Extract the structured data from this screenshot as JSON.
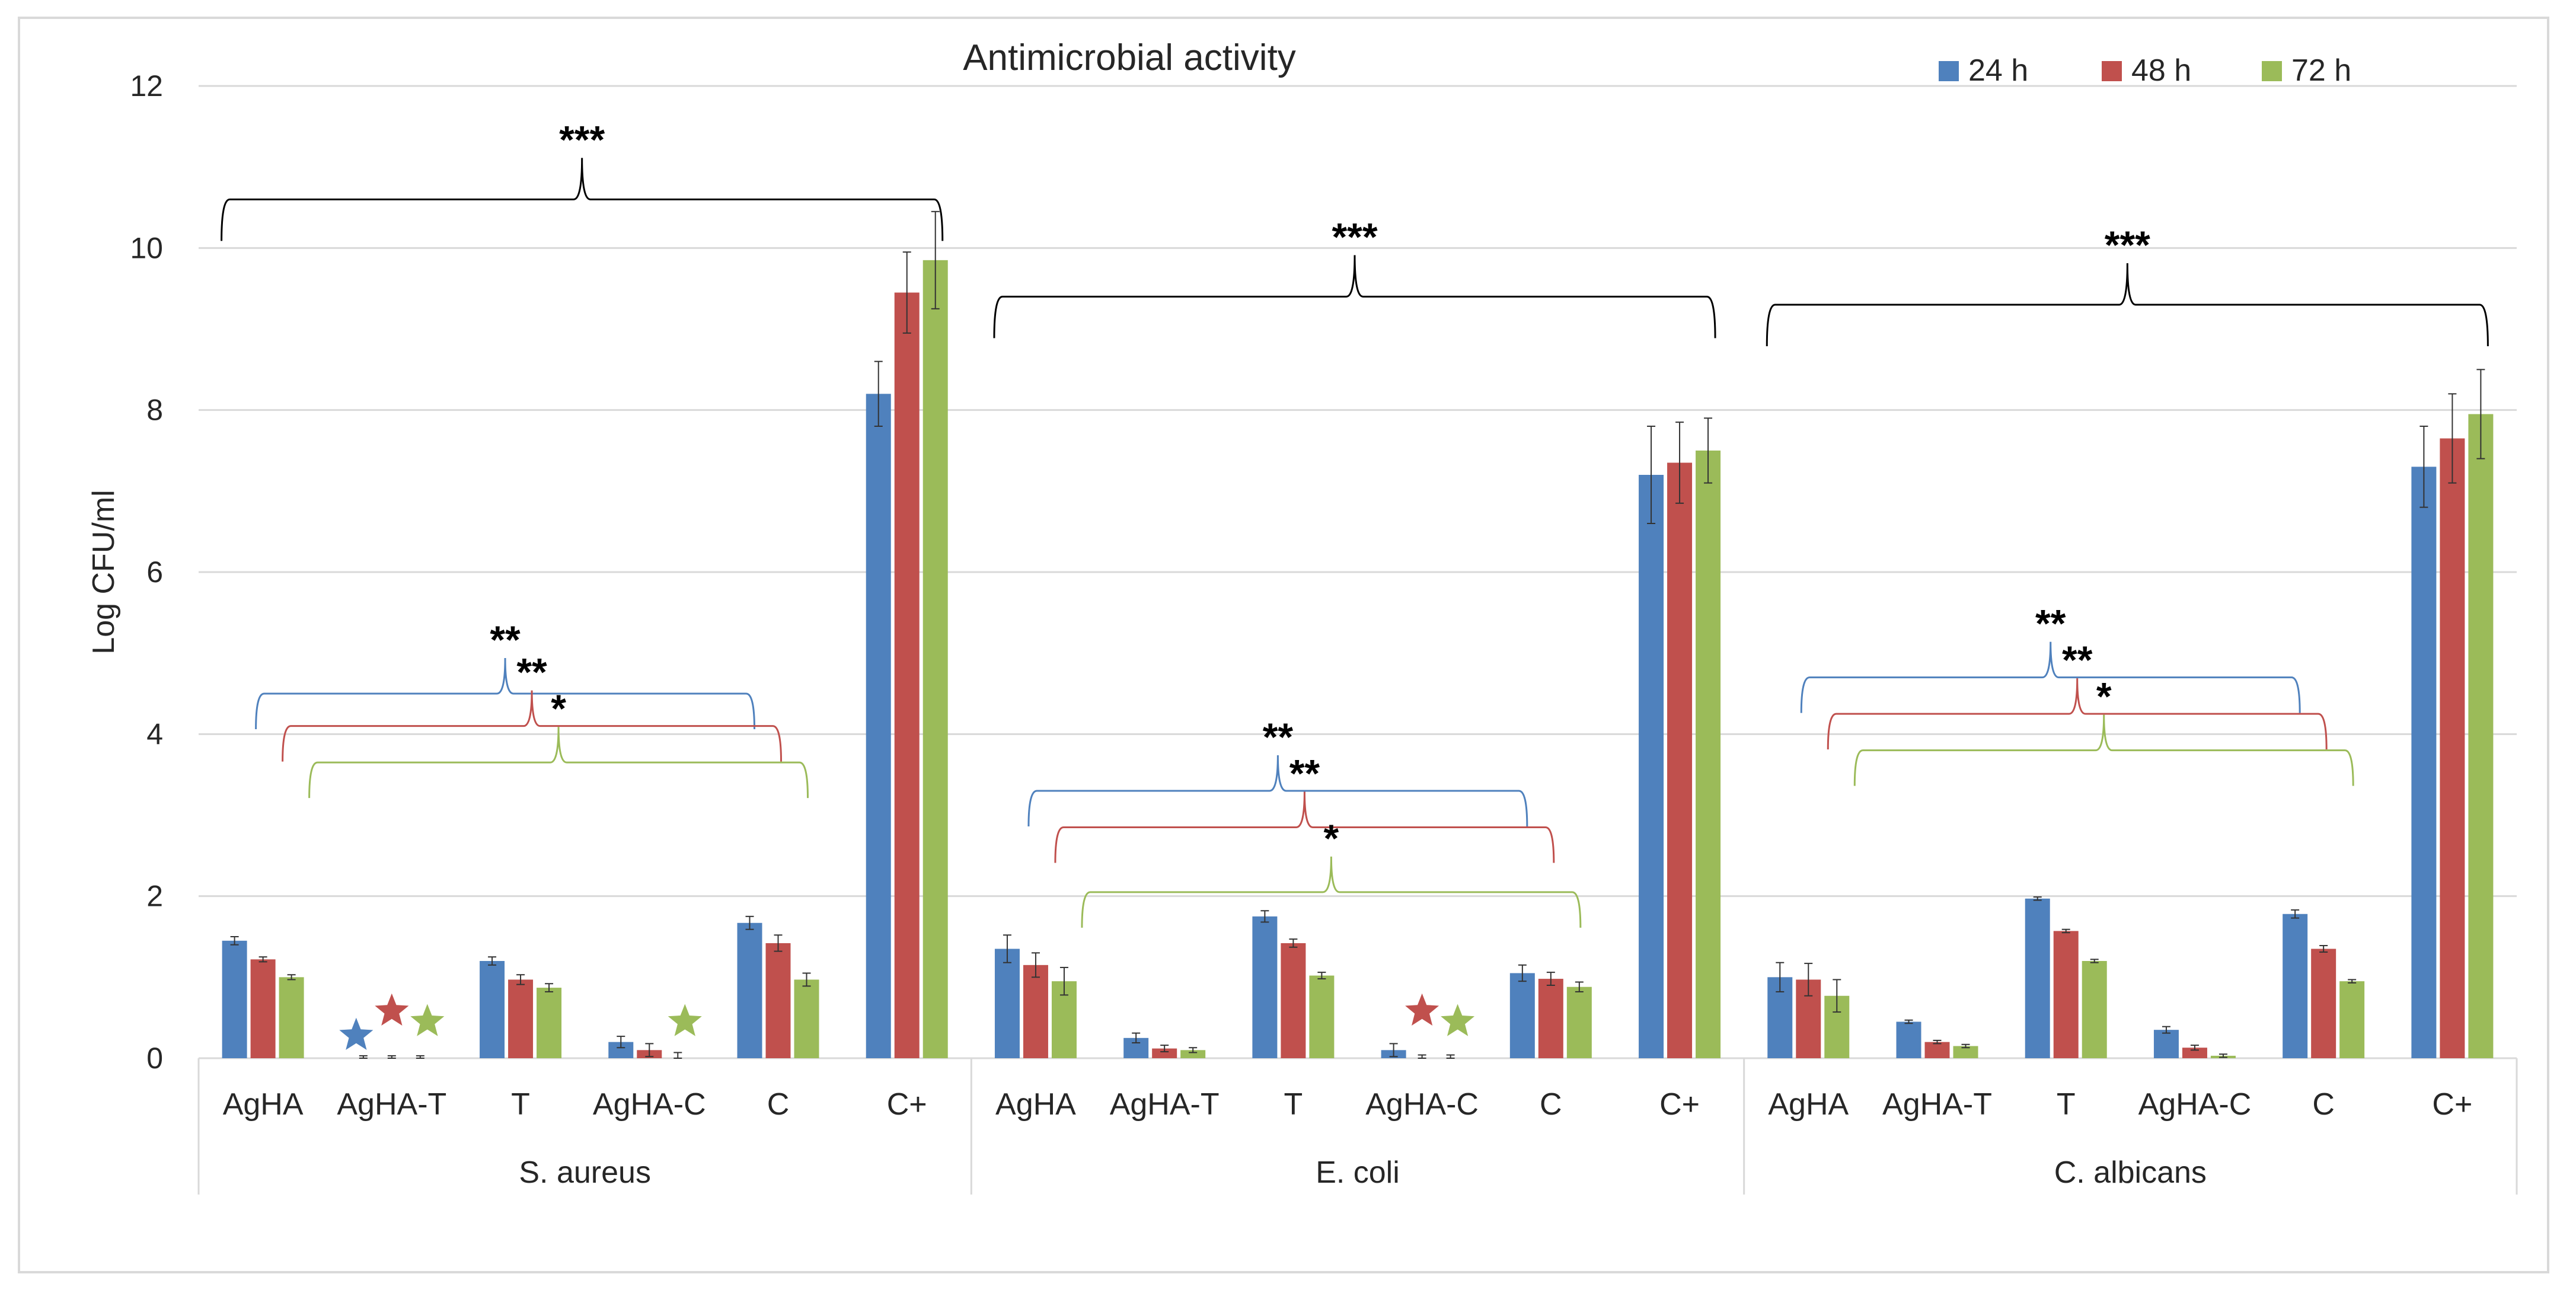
{
  "chart_data": {
    "type": "bar",
    "title": "Antimicrobial activity",
    "ylabel": "Log CFU/ml",
    "xlabel": "",
    "ylim": [
      0,
      12
    ],
    "yticks": [
      0,
      2,
      4,
      6,
      8,
      10,
      12
    ],
    "grid": true,
    "legend_position": "top-right",
    "groups": [
      {
        "name": "S. aureus",
        "categories": [
          "AgHA",
          "AgHA-T",
          "T",
          "AgHA-C",
          "C",
          "C+"
        ]
      },
      {
        "name": "E. coli",
        "categories": [
          "AgHA",
          "AgHA-T",
          "T",
          "AgHA-C",
          "C",
          "C+"
        ]
      },
      {
        "name": "C. albicans",
        "categories": [
          "AgHA",
          "AgHA-T",
          "T",
          "AgHA-C",
          "C",
          "C+"
        ]
      }
    ],
    "series": [
      {
        "name": "24 h",
        "color": "#4f81bd",
        "values": [
          1.45,
          0.0,
          1.2,
          0.2,
          1.67,
          8.2,
          1.35,
          0.25,
          1.75,
          0.1,
          1.05,
          7.2,
          1.0,
          0.45,
          1.97,
          0.35,
          1.78,
          7.3
        ],
        "errors": [
          0.05,
          0.03,
          0.05,
          0.07,
          0.08,
          0.4,
          0.17,
          0.06,
          0.07,
          0.08,
          0.1,
          0.6,
          0.18,
          0.02,
          0.02,
          0.04,
          0.05,
          0.5
        ]
      },
      {
        "name": "48 h",
        "color": "#c0504d",
        "values": [
          1.22,
          0.0,
          0.97,
          0.1,
          1.42,
          9.45,
          1.15,
          0.12,
          1.42,
          0.0,
          0.98,
          7.35,
          0.97,
          0.2,
          1.57,
          0.13,
          1.35,
          7.65
        ],
        "errors": [
          0.03,
          0.03,
          0.06,
          0.08,
          0.1,
          0.5,
          0.15,
          0.04,
          0.05,
          0.04,
          0.08,
          0.5,
          0.2,
          0.02,
          0.02,
          0.03,
          0.04,
          0.55
        ]
      },
      {
        "name": "72 h",
        "color": "#9bbb59",
        "values": [
          1.0,
          0.0,
          0.87,
          0.0,
          0.97,
          9.85,
          0.95,
          0.1,
          1.02,
          0.0,
          0.88,
          7.5,
          0.77,
          0.15,
          1.2,
          0.03,
          0.95,
          7.95
        ],
        "errors": [
          0.03,
          0.03,
          0.05,
          0.07,
          0.08,
          0.6,
          0.17,
          0.03,
          0.04,
          0.04,
          0.06,
          0.4,
          0.2,
          0.02,
          0.02,
          0.02,
          0.02,
          0.55
        ]
      }
    ],
    "star_markers": [
      {
        "group": 0,
        "category": "AgHA-T",
        "series": [
          "24 h",
          "48 h",
          "72 h"
        ]
      },
      {
        "group": 0,
        "category": "AgHA-C",
        "series": [
          "72 h"
        ]
      },
      {
        "group": 1,
        "category": "AgHA-C",
        "series": [
          "48 h",
          "72 h"
        ]
      }
    ],
    "significance": [
      {
        "label": "***",
        "color": "#000000",
        "group": 0,
        "from": 0,
        "to": 5,
        "y": 10.6
      },
      {
        "label": "***",
        "color": "#000000",
        "group": 1,
        "from": 0,
        "to": 5,
        "y": 9.4
      },
      {
        "label": "***",
        "color": "#000000",
        "group": 2,
        "from": 0,
        "to": 5,
        "y": 9.3
      },
      {
        "label": "**",
        "color": "#4f81bd",
        "group": 0,
        "from": 0,
        "to": 4,
        "y": 4.5,
        "series": 0
      },
      {
        "label": "**",
        "color": "#c0504d",
        "group": 0,
        "from": 0,
        "to": 4,
        "y": 4.1,
        "series": 1
      },
      {
        "label": "*",
        "color": "#9bbb59",
        "group": 0,
        "from": 0,
        "to": 4,
        "y": 3.65,
        "series": 2
      },
      {
        "label": "**",
        "color": "#4f81bd",
        "group": 1,
        "from": 0,
        "to": 4,
        "y": 3.3,
        "series": 0
      },
      {
        "label": "**",
        "color": "#c0504d",
        "group": 1,
        "from": 0,
        "to": 4,
        "y": 2.85,
        "series": 1
      },
      {
        "label": "*",
        "color": "#9bbb59",
        "group": 1,
        "from": 0,
        "to": 4,
        "y": 2.05,
        "series": 2
      },
      {
        "label": "**",
        "color": "#4f81bd",
        "group": 2,
        "from": 0,
        "to": 4,
        "y": 4.7,
        "series": 0
      },
      {
        "label": "**",
        "color": "#c0504d",
        "group": 2,
        "from": 0,
        "to": 4,
        "y": 4.25,
        "series": 1
      },
      {
        "label": "*",
        "color": "#9bbb59",
        "group": 2,
        "from": 0,
        "to": 4,
        "y": 3.8,
        "series": 2
      }
    ]
  }
}
